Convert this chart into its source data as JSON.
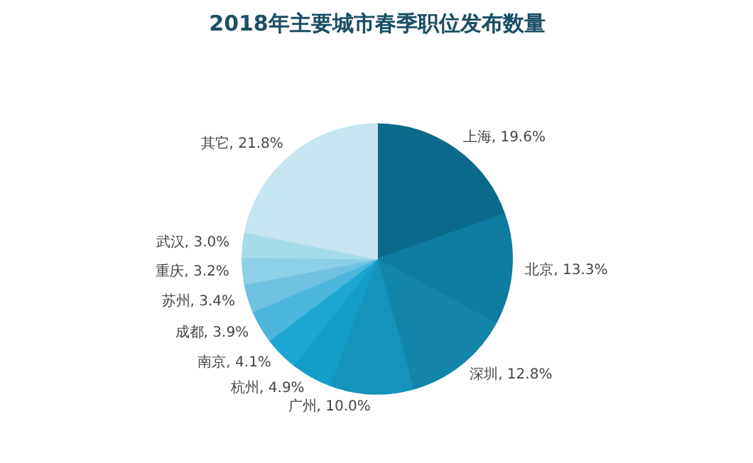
{
  "chart_data": {
    "type": "pie",
    "title": "2018年主要城市春季职位发布数量",
    "categories": [
      "上海",
      "北京",
      "深圳",
      "广州",
      "杭州",
      "南京",
      "成都",
      "苏州",
      "重庆",
      "武汉",
      "其它"
    ],
    "values": [
      19.6,
      13.3,
      12.8,
      10.0,
      4.9,
      4.1,
      3.9,
      3.4,
      3.2,
      3.0,
      21.8
    ],
    "value_labels": [
      "19.6%",
      "13.3%",
      "12.8%",
      "10.0%",
      "4.9%",
      "4.1%",
      "3.9%",
      "3.4%",
      "3.2%",
      "3.0%",
      "21.8%"
    ],
    "colors": [
      "#0b6a8a",
      "#0f7b9e",
      "#1285a8",
      "#1493bd",
      "#139dc9",
      "#1ca6d3",
      "#4db6dc",
      "#6fc2e0",
      "#8ccfe6",
      "#a6dbeb",
      "#c5e5f0"
    ]
  }
}
